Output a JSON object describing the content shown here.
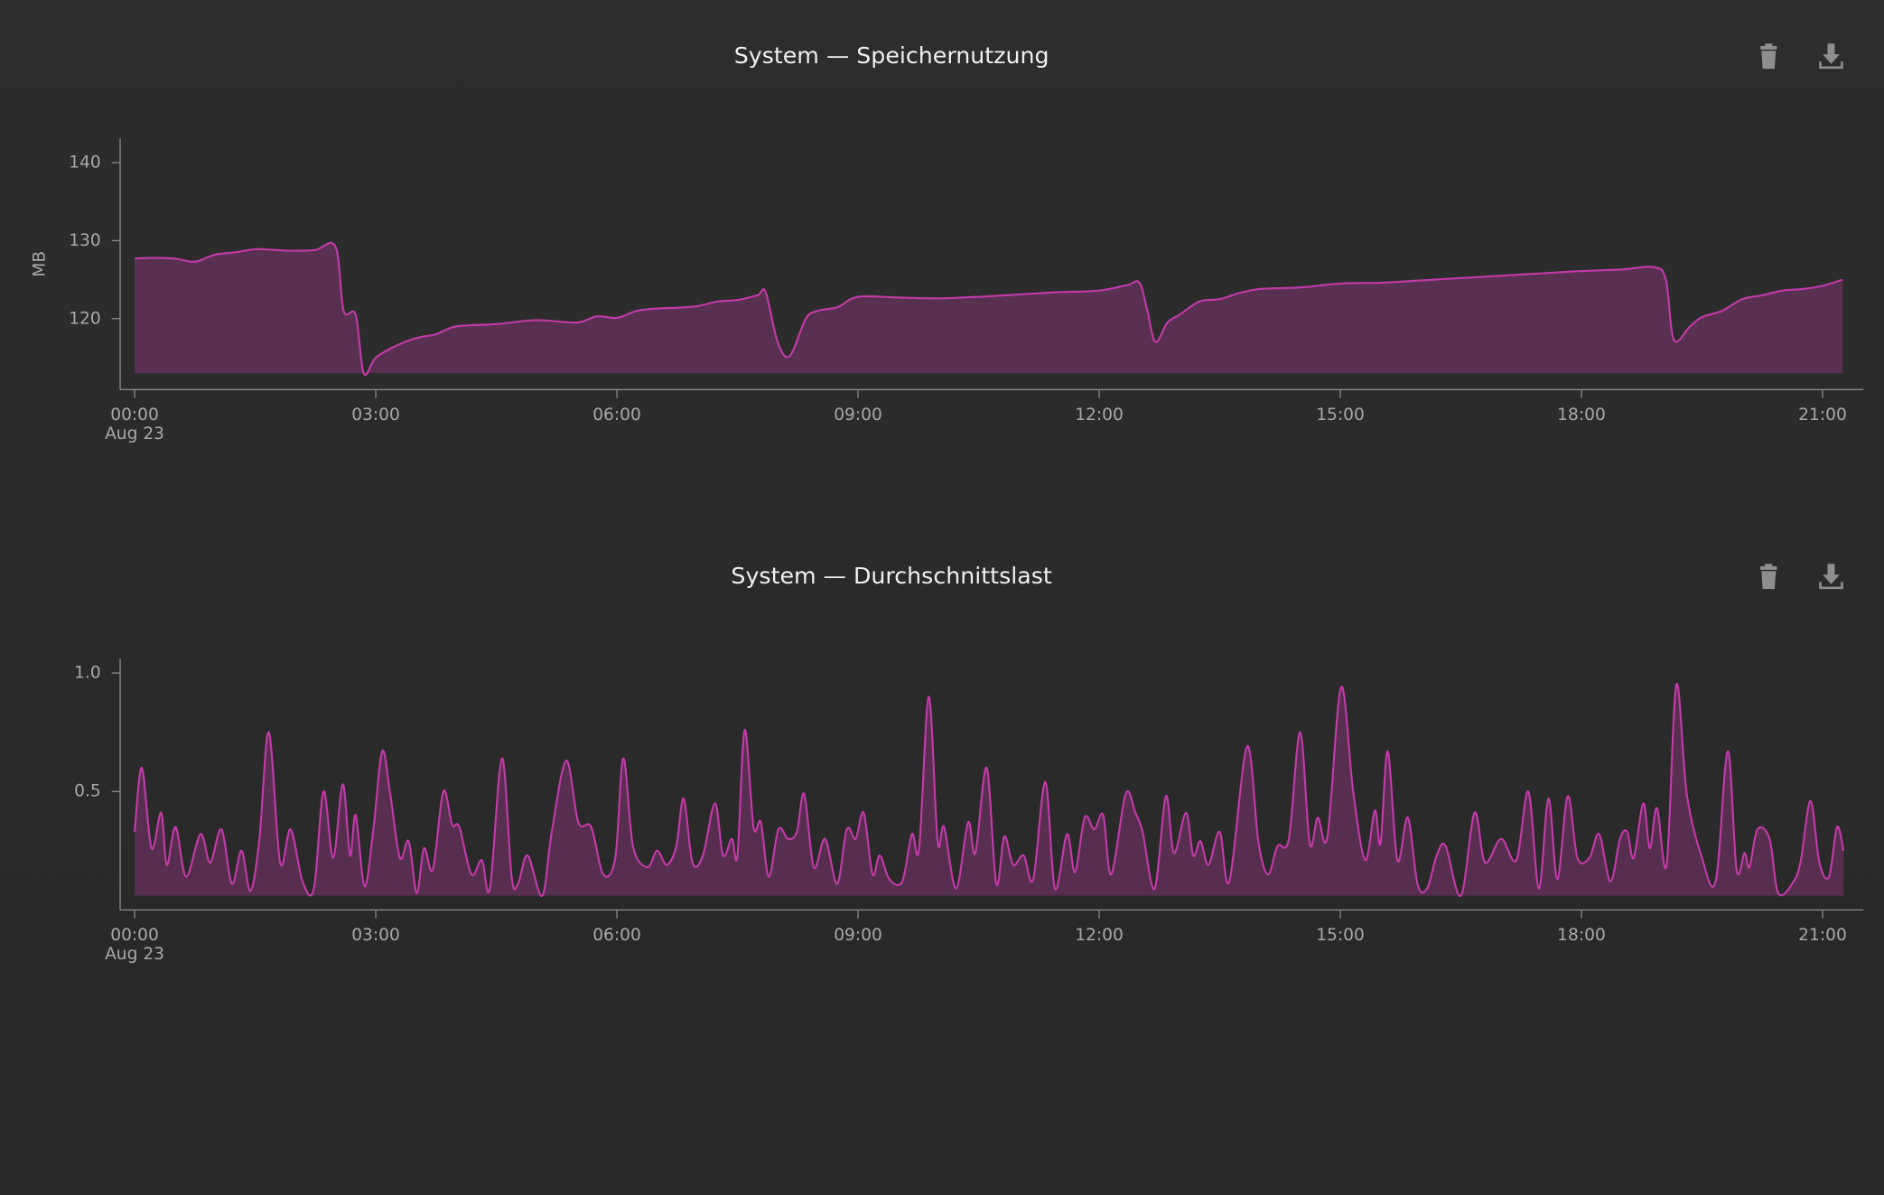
{
  "chart_data": [
    {
      "type": "area",
      "title": "System — Speichernutzung",
      "y_label": "MB",
      "x_start_date": "Aug 23",
      "color": "#c43aa9",
      "xlim": [
        -0.18,
        21.51
      ],
      "ylim": [
        110.9,
        143.1
      ],
      "xticks": [
        {
          "value": 0,
          "label": "00:00"
        },
        {
          "value": 3,
          "label": "03:00"
        },
        {
          "value": 6,
          "label": "06:00"
        },
        {
          "value": 9,
          "label": "09:00"
        },
        {
          "value": 12,
          "label": "12:00"
        },
        {
          "value": 15,
          "label": "15:00"
        },
        {
          "value": 18,
          "label": "18:00"
        },
        {
          "value": 21,
          "label": "21:00"
        }
      ],
      "yticks": [
        120,
        130,
        140
      ],
      "x": [
        0,
        0.25,
        0.5,
        0.75,
        1.0,
        1.25,
        1.5,
        1.75,
        2.0,
        2.25,
        2.5,
        2.6,
        2.75,
        2.85,
        3.0,
        3.25,
        3.5,
        3.75,
        4.0,
        4.5,
        5.0,
        5.5,
        5.75,
        6.0,
        6.25,
        6.5,
        6.75,
        7.0,
        7.25,
        7.5,
        7.75,
        7.85,
        8.0,
        8.15,
        8.35,
        8.5,
        8.75,
        9.0,
        9.5,
        10.0,
        10.5,
        11.0,
        11.5,
        12.0,
        12.35,
        12.5,
        12.6,
        12.7,
        12.85,
        13.0,
        13.25,
        13.5,
        13.75,
        14.0,
        14.5,
        15.0,
        15.5,
        16.0,
        16.5,
        17.0,
        17.5,
        18.0,
        18.5,
        18.9,
        19.05,
        19.15,
        19.35,
        19.5,
        19.75,
        20.0,
        20.25,
        20.5,
        20.75,
        21.0,
        21.25
      ],
      "values": [
        127.7,
        127.8,
        127.7,
        127.3,
        128.2,
        128.5,
        128.9,
        128.8,
        128.7,
        128.8,
        129.2,
        121,
        120.5,
        113,
        115,
        116.5,
        117.5,
        118,
        119,
        119.3,
        119.8,
        119.5,
        120.3,
        120.1,
        121,
        121.3,
        121.4,
        121.6,
        122.2,
        122.4,
        123,
        123.4,
        117,
        115.2,
        120,
        121,
        121.5,
        122.8,
        122.7,
        122.6,
        122.8,
        123.1,
        123.4,
        123.6,
        124.3,
        124.6,
        121,
        117,
        119.5,
        120.5,
        122.2,
        122.5,
        123.3,
        123.8,
        124,
        124.5,
        124.6,
        124.9,
        125.2,
        125.5,
        125.8,
        126.1,
        126.3,
        126.6,
        125,
        117.3,
        119,
        120.2,
        121,
        122.5,
        123,
        123.6,
        123.8,
        124.2,
        125
      ]
    },
    {
      "type": "area",
      "title": "System — Durchschnittslast",
      "x_start_date": "Aug 23",
      "color": "#c43aa9",
      "xlim": [
        -0.18,
        21.51
      ],
      "ylim": [
        0,
        1.06
      ],
      "xticks": [
        {
          "value": 0,
          "label": "00:00"
        },
        {
          "value": 3,
          "label": "03:00"
        },
        {
          "value": 6,
          "label": "06:00"
        },
        {
          "value": 9,
          "label": "09:00"
        },
        {
          "value": 12,
          "label": "12:00"
        },
        {
          "value": 15,
          "label": "15:00"
        },
        {
          "value": 18,
          "label": "18:00"
        },
        {
          "value": 21,
          "label": "21:00"
        }
      ],
      "yticks": [
        0.5,
        {
          "value": 1,
          "label": "1.0"
        }
      ],
      "x": [
        0,
        0.09,
        0.21,
        0.33,
        0.4,
        0.51,
        0.64,
        0.82,
        0.94,
        1.08,
        1.21,
        1.33,
        1.44,
        1.55,
        1.67,
        1.81,
        1.94,
        2.09,
        2.23,
        2.35,
        2.47,
        2.59,
        2.68,
        2.75,
        2.86,
        2.97,
        3.08,
        3.18,
        3.3,
        3.41,
        3.51,
        3.6,
        3.71,
        3.84,
        3.95,
        4.04,
        4.19,
        4.32,
        4.42,
        4.57,
        4.69,
        4.77,
        4.89,
        5.07,
        5.19,
        5.37,
        5.52,
        5.68,
        5.83,
        5.98,
        6.08,
        6.2,
        6.38,
        6.5,
        6.62,
        6.74,
        6.83,
        6.94,
        7.07,
        7.22,
        7.32,
        7.43,
        7.5,
        7.59,
        7.7,
        7.79,
        7.89,
        8.01,
        8.13,
        8.24,
        8.33,
        8.45,
        8.59,
        8.74,
        8.86,
        8.97,
        9.07,
        9.18,
        9.27,
        9.39,
        9.55,
        9.67,
        9.76,
        9.88,
        9.99,
        10.07,
        10.22,
        10.37,
        10.46,
        10.6,
        10.72,
        10.82,
        10.93,
        11.06,
        11.18,
        11.33,
        11.45,
        11.6,
        11.7,
        11.82,
        11.94,
        12.05,
        12.15,
        12.33,
        12.45,
        12.54,
        12.69,
        12.83,
        12.93,
        13.08,
        13.17,
        13.26,
        13.36,
        13.5,
        13.62,
        13.84,
        13.98,
        14.1,
        14.22,
        14.36,
        14.5,
        14.62,
        14.72,
        14.84,
        15.01,
        15.16,
        15.31,
        15.43,
        15.5,
        15.59,
        15.71,
        15.84,
        15.96,
        16.08,
        16.2,
        16.31,
        16.5,
        16.67,
        16.8,
        17.0,
        17.19,
        17.34,
        17.47,
        17.59,
        17.7,
        17.83,
        17.95,
        18.1,
        18.22,
        18.36,
        18.48,
        18.57,
        18.65,
        18.77,
        18.85,
        18.94,
        19.06,
        19.18,
        19.31,
        19.49,
        19.67,
        19.82,
        19.93,
        20.03,
        20.09,
        20.19,
        20.34,
        20.45,
        20.64,
        20.73,
        20.85,
        20.96,
        21.08,
        21.18,
        21.26
      ],
      "values": [
        0.33,
        0.6,
        0.26,
        0.41,
        0.19,
        0.35,
        0.14,
        0.32,
        0.2,
        0.34,
        0.11,
        0.25,
        0.08,
        0.29,
        0.75,
        0.2,
        0.34,
        0.12,
        0.09,
        0.5,
        0.22,
        0.53,
        0.23,
        0.4,
        0.1,
        0.34,
        0.67,
        0.49,
        0.22,
        0.29,
        0.07,
        0.26,
        0.17,
        0.5,
        0.36,
        0.35,
        0.15,
        0.21,
        0.09,
        0.64,
        0.14,
        0.11,
        0.23,
        0.06,
        0.33,
        0.63,
        0.37,
        0.35,
        0.15,
        0.22,
        0.64,
        0.27,
        0.18,
        0.25,
        0.19,
        0.27,
        0.47,
        0.2,
        0.23,
        0.45,
        0.23,
        0.3,
        0.23,
        0.76,
        0.35,
        0.37,
        0.14,
        0.34,
        0.3,
        0.33,
        0.49,
        0.18,
        0.3,
        0.11,
        0.34,
        0.3,
        0.41,
        0.15,
        0.23,
        0.13,
        0.12,
        0.32,
        0.26,
        0.9,
        0.29,
        0.35,
        0.09,
        0.37,
        0.24,
        0.6,
        0.11,
        0.31,
        0.19,
        0.23,
        0.13,
        0.54,
        0.09,
        0.32,
        0.16,
        0.39,
        0.34,
        0.4,
        0.15,
        0.49,
        0.41,
        0.33,
        0.09,
        0.48,
        0.24,
        0.41,
        0.23,
        0.29,
        0.19,
        0.33,
        0.12,
        0.69,
        0.29,
        0.15,
        0.27,
        0.3,
        0.75,
        0.28,
        0.39,
        0.31,
        0.94,
        0.5,
        0.21,
        0.42,
        0.28,
        0.67,
        0.21,
        0.39,
        0.11,
        0.09,
        0.23,
        0.27,
        0.06,
        0.41,
        0.2,
        0.3,
        0.21,
        0.5,
        0.09,
        0.47,
        0.13,
        0.48,
        0.22,
        0.22,
        0.32,
        0.12,
        0.3,
        0.33,
        0.22,
        0.45,
        0.26,
        0.43,
        0.19,
        0.95,
        0.49,
        0.23,
        0.12,
        0.67,
        0.17,
        0.24,
        0.18,
        0.34,
        0.3,
        0.07,
        0.12,
        0.21,
        0.46,
        0.2,
        0.14,
        0.35,
        0.25
      ]
    }
  ]
}
